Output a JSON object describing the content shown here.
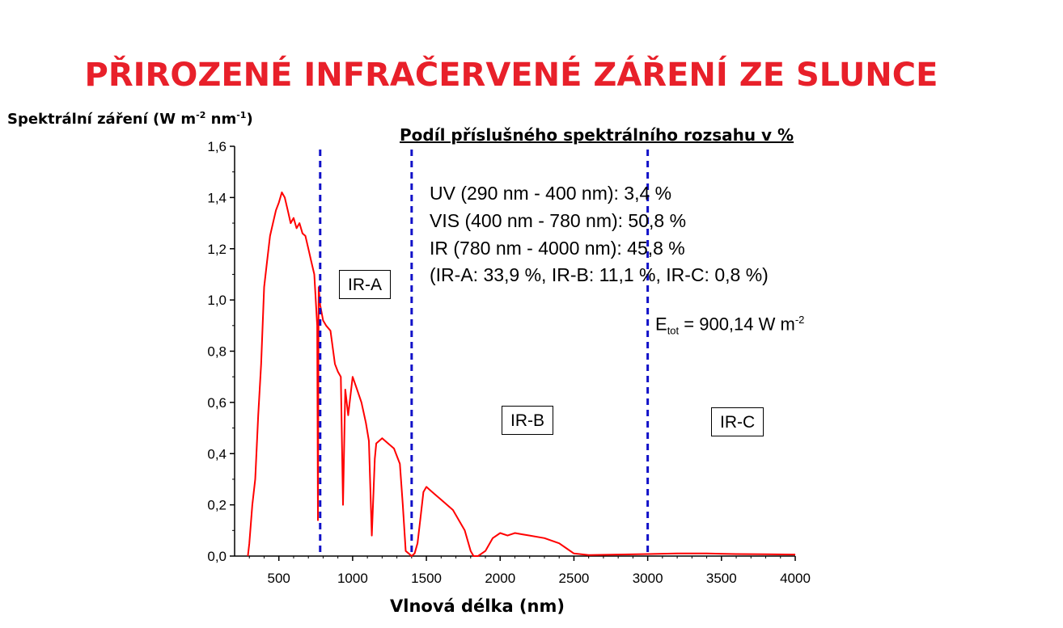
{
  "title": "PŘIROZENÉ INFRAČERVENÉ ZÁŘENÍ ZE SLUNCE",
  "ylabel_main": "Spektrální záření (W m",
  "ylabel_exp1": "-2",
  "ylabel_mid": " nm",
  "ylabel_exp2": "-1",
  "ylabel_end": ")",
  "xlabel": "Vlnová délka (nm)",
  "legend": {
    "heading": "Podíl příslušného spektrálního rozsahu v %",
    "lines": [
      "UV (290 nm - 400 nm): 3,4 %",
      "VIS (400 nm - 780 nm): 50,8 %",
      "IR (780 nm - 4000 nm): 45,8 %",
      "(IR-A: 33,9 %, IR-B: 11,1 %, IR-C: 0,8 %)"
    ],
    "etot_prefix": "E",
    "etot_sub": "tot",
    "etot_value": " = 900,14 W m",
    "etot_exp": "-2"
  },
  "bands": [
    "IR-A",
    "IR-B",
    "IR-C"
  ],
  "colors": {
    "title": "#e8202a",
    "spectrum": "#ff0000",
    "dividers": "#1010c8"
  },
  "chart_data": {
    "type": "line",
    "xlim": [
      200,
      4000
    ],
    "ylim": [
      0,
      1.6
    ],
    "xticks": [
      500,
      1000,
      1500,
      2000,
      2500,
      3000,
      3500,
      4000
    ],
    "xtick_labels": [
      "500",
      "1000",
      "1500",
      "2000",
      "2500",
      "3000",
      "3500",
      "4000"
    ],
    "yticks": [
      0,
      0.2,
      0.4,
      0.6,
      0.8,
      1.0,
      1.2,
      1.4,
      1.6
    ],
    "ytick_labels": [
      "0,0",
      "0,2",
      "0,4",
      "0,6",
      "0,8",
      "1,0",
      "1,2",
      "1,4",
      "1,6"
    ],
    "dividers": [
      780,
      1400,
      3000
    ],
    "grid": false,
    "series": [
      {
        "x": [
          290,
          300,
          320,
          340,
          360,
          380,
          400,
          420,
          440,
          460,
          480,
          500,
          520,
          540,
          560,
          580,
          600,
          620,
          640,
          660,
          680,
          700,
          720,
          740,
          760,
          765,
          770,
          780,
          800,
          820,
          850,
          880,
          900,
          920,
          935,
          950,
          970,
          1000,
          1030,
          1060,
          1090,
          1110,
          1130,
          1150,
          1160,
          1200,
          1240,
          1280,
          1320,
          1340,
          1360,
          1380,
          1400,
          1420,
          1440,
          1460,
          1480,
          1500,
          1520,
          1560,
          1600,
          1640,
          1680,
          1720,
          1760,
          1800,
          1820,
          1850,
          1900,
          1950,
          2000,
          2050,
          2100,
          2150,
          2200,
          2300,
          2400,
          2450,
          2500,
          2600,
          2800,
          3000,
          3200,
          3400,
          3600,
          3800,
          4000
        ],
        "y": [
          0.0,
          0.05,
          0.2,
          0.3,
          0.55,
          0.75,
          1.05,
          1.15,
          1.25,
          1.3,
          1.35,
          1.38,
          1.42,
          1.4,
          1.35,
          1.3,
          1.32,
          1.28,
          1.3,
          1.26,
          1.25,
          1.2,
          1.15,
          1.1,
          0.9,
          0.14,
          1.05,
          0.98,
          0.92,
          0.9,
          0.88,
          0.75,
          0.72,
          0.7,
          0.2,
          0.65,
          0.55,
          0.7,
          0.65,
          0.6,
          0.52,
          0.45,
          0.08,
          0.38,
          0.44,
          0.46,
          0.44,
          0.42,
          0.36,
          0.2,
          0.02,
          0.01,
          0.0,
          0.01,
          0.05,
          0.15,
          0.25,
          0.27,
          0.26,
          0.24,
          0.22,
          0.2,
          0.18,
          0.14,
          0.1,
          0.02,
          0.0,
          0.0,
          0.02,
          0.07,
          0.09,
          0.08,
          0.09,
          0.085,
          0.08,
          0.07,
          0.05,
          0.03,
          0.01,
          0.004,
          0.006,
          0.008,
          0.01,
          0.01,
          0.008,
          0.007,
          0.006
        ]
      }
    ]
  }
}
